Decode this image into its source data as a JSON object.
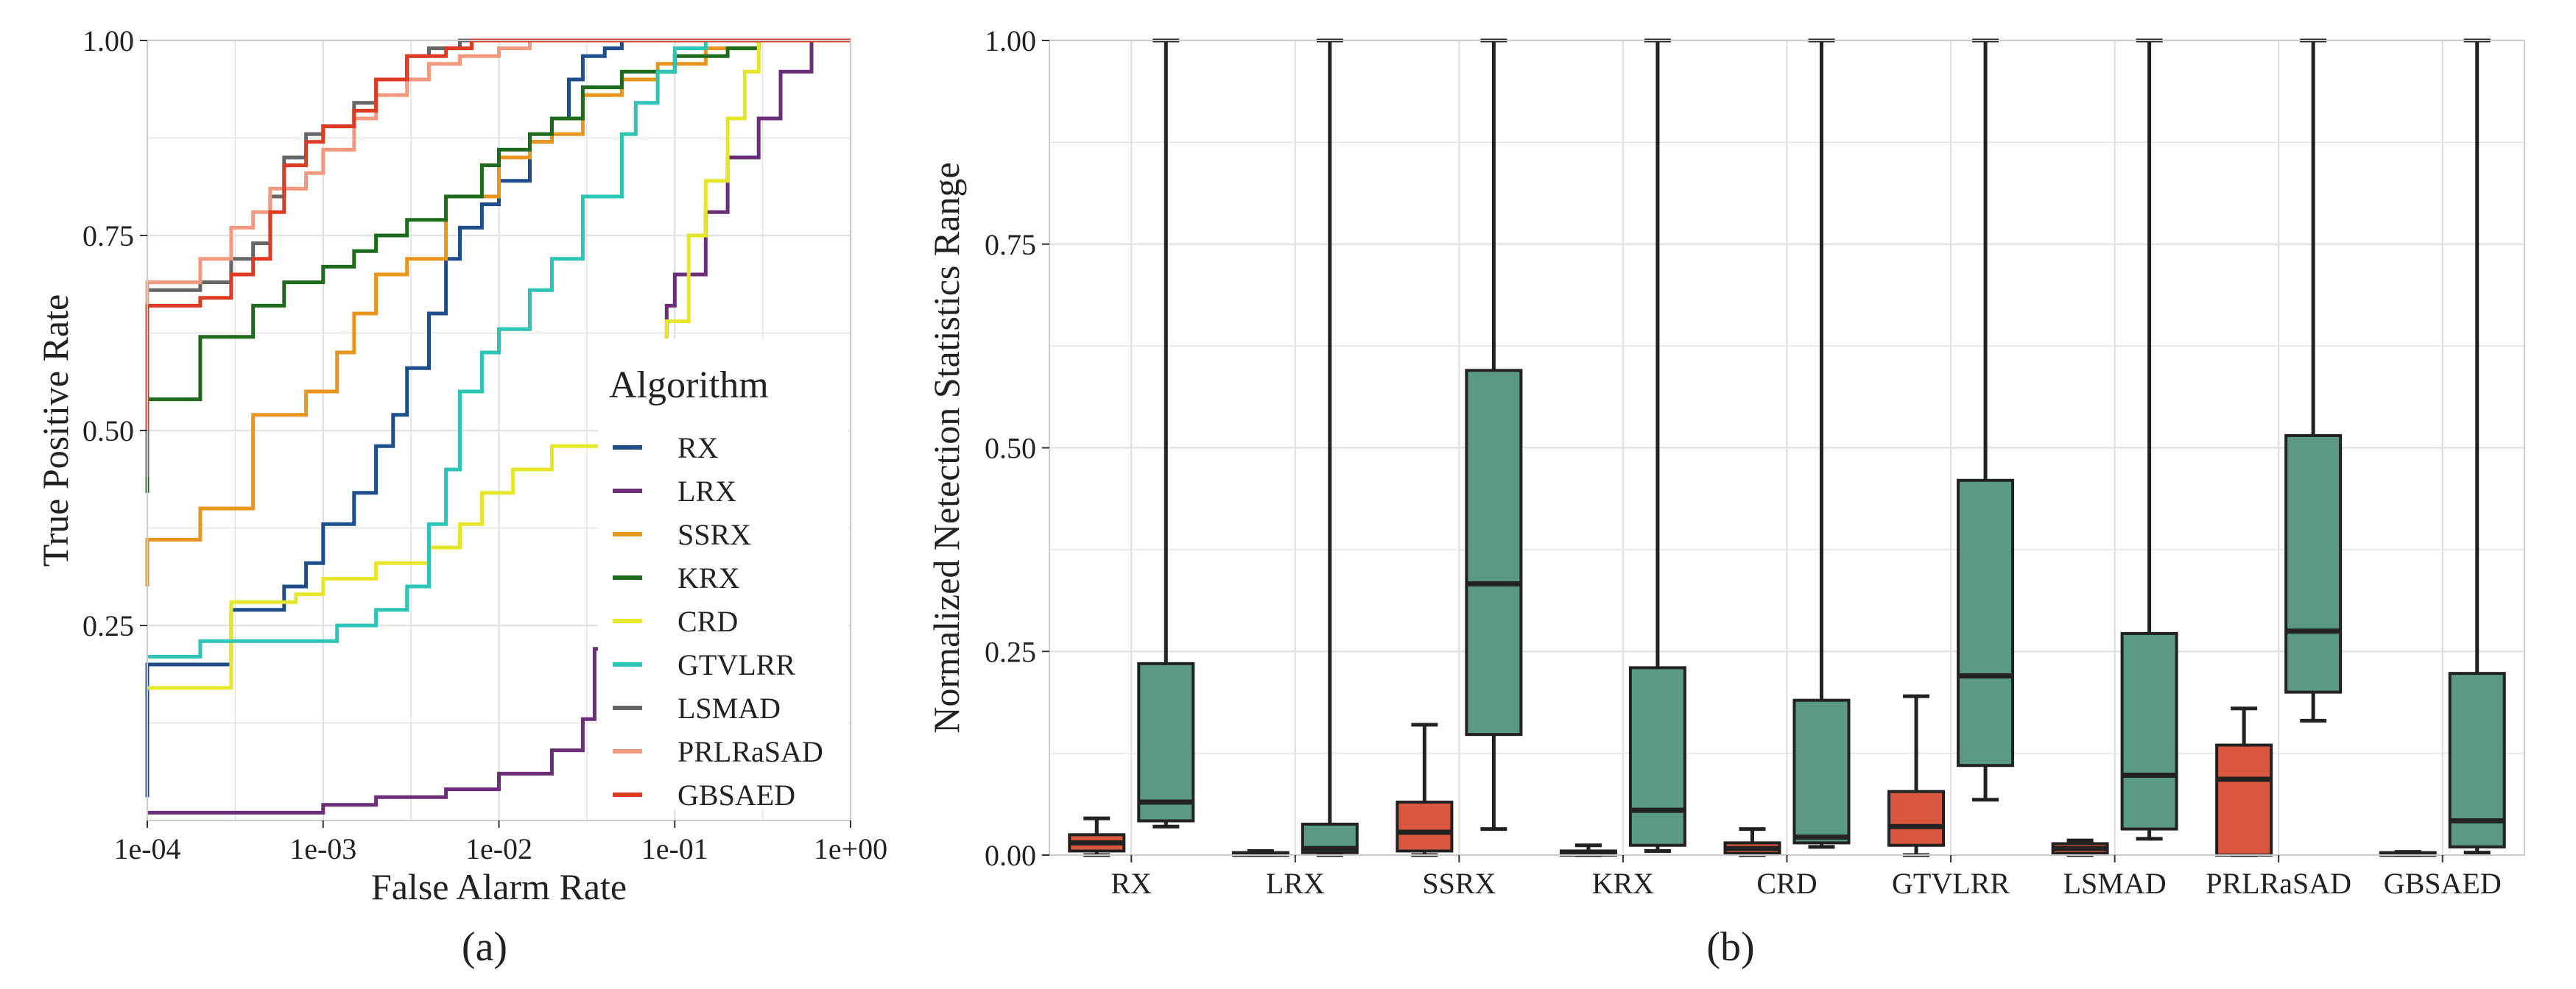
{
  "colors": {
    "RX": "#1f4e8c",
    "LRX": "#6b2f7a",
    "SSRX": "#e8961e",
    "KRX": "#1e6b1e",
    "CRD": "#e6e62a",
    "GTVLRR": "#2ec4b6",
    "LSMAD": "#666666",
    "PRLRaSAD": "#f29a80",
    "GBSAED": "#dd3b22",
    "background_box": "#d9573f",
    "target_box": "#5b9a82",
    "grid": "#e3e3e3"
  },
  "chart_data": [
    {
      "type": "line",
      "panel_label": "(a)",
      "title": "",
      "xlabel": "False Alarm Rate",
      "ylabel": "True Positive Rate",
      "xscale": "log",
      "xlim": [
        0.0001,
        1
      ],
      "ylim": [
        0,
        1
      ],
      "xticks": [
        "1e-04",
        "1e-03",
        "1e-02",
        "1e-01",
        "1e+00"
      ],
      "yticks": [
        "0.25",
        "0.50",
        "0.75",
        "1.00"
      ],
      "legend_title": "Algorithm",
      "legend_position": "bottom-right",
      "series": [
        {
          "name": "RX",
          "x": [
            0.0001,
            0.0001,
            0.0003,
            0.0003,
            0.0006,
            0.0008,
            0.001,
            0.0015,
            0.002,
            0.0025,
            0.003,
            0.004,
            0.005,
            0.006,
            0.008,
            0.01,
            0.015,
            0.02,
            0.025,
            0.03,
            0.04,
            0.05,
            1
          ],
          "y": [
            0.03,
            0.2,
            0.2,
            0.27,
            0.3,
            0.33,
            0.38,
            0.42,
            0.48,
            0.52,
            0.58,
            0.65,
            0.72,
            0.76,
            0.79,
            0.82,
            0.87,
            0.9,
            0.95,
            0.98,
            0.99,
            1,
            1
          ]
        },
        {
          "name": "LRX",
          "x": [
            0.0001,
            0.0005,
            0.001,
            0.002,
            0.005,
            0.01,
            0.02,
            0.03,
            0.035,
            0.08,
            0.09,
            0.1,
            0.15,
            0.2,
            0.3,
            0.4,
            0.6,
            1
          ],
          "y": [
            0.01,
            0.01,
            0.02,
            0.03,
            0.04,
            0.06,
            0.09,
            0.13,
            0.22,
            0.6,
            0.66,
            0.7,
            0.78,
            0.85,
            0.9,
            0.96,
            1,
            1
          ]
        },
        {
          "name": "SSRX",
          "x": [
            0.0001,
            0.0001,
            0.0002,
            0.0002,
            0.0004,
            0.0004,
            0.0008,
            0.0012,
            0.0015,
            0.002,
            0.003,
            0.005,
            0.01,
            0.015,
            0.02,
            0.03,
            0.05,
            0.08,
            0.15,
            0.3,
            1
          ],
          "y": [
            0.3,
            0.36,
            0.36,
            0.4,
            0.4,
            0.52,
            0.55,
            0.6,
            0.65,
            0.7,
            0.72,
            0.8,
            0.85,
            0.87,
            0.88,
            0.93,
            0.95,
            0.97,
            0.99,
            1,
            1
          ]
        },
        {
          "name": "KRX",
          "x": [
            0.0001,
            0.0001,
            0.0002,
            0.0002,
            0.0004,
            0.0006,
            0.001,
            0.0015,
            0.002,
            0.003,
            0.005,
            0.008,
            0.01,
            0.015,
            0.02,
            0.03,
            0.05,
            0.1,
            0.2,
            0.3,
            1
          ],
          "y": [
            0.42,
            0.54,
            0.56,
            0.62,
            0.66,
            0.69,
            0.71,
            0.73,
            0.75,
            0.77,
            0.8,
            0.84,
            0.86,
            0.88,
            0.9,
            0.94,
            0.96,
            0.98,
            0.99,
            1,
            1
          ]
        },
        {
          "name": "CRD",
          "x": [
            0.0001,
            0.0003,
            0.0003,
            0.0007,
            0.001,
            0.002,
            0.004,
            0.006,
            0.008,
            0.012,
            0.02,
            0.04,
            0.06,
            0.09,
            0.12,
            0.15,
            0.2,
            0.25,
            0.3,
            1
          ],
          "y": [
            0.17,
            0.18,
            0.28,
            0.29,
            0.31,
            0.33,
            0.35,
            0.38,
            0.42,
            0.45,
            0.48,
            0.55,
            0.58,
            0.64,
            0.75,
            0.82,
            0.9,
            0.96,
            1,
            1
          ]
        },
        {
          "name": "GTVLRR",
          "x": [
            0.0001,
            0.0002,
            0.0002,
            0.0009,
            0.0012,
            0.002,
            0.003,
            0.004,
            0.005,
            0.006,
            0.008,
            0.01,
            0.015,
            0.02,
            0.03,
            0.05,
            0.06,
            0.08,
            0.1,
            0.15,
            1
          ],
          "y": [
            0.21,
            0.21,
            0.23,
            0.23,
            0.25,
            0.27,
            0.3,
            0.38,
            0.45,
            0.55,
            0.6,
            0.63,
            0.68,
            0.72,
            0.8,
            0.88,
            0.92,
            0.96,
            0.99,
            1,
            1
          ]
        },
        {
          "name": "LSMAD",
          "x": [
            0.0001,
            0.0001,
            0.0002,
            0.0003,
            0.0004,
            0.0005,
            0.0006,
            0.0008,
            0.001,
            0.0015,
            0.002,
            0.003,
            0.004,
            0.006,
            0.008,
            1
          ],
          "y": [
            0.44,
            0.68,
            0.69,
            0.72,
            0.74,
            0.8,
            0.85,
            0.88,
            0.89,
            0.92,
            0.95,
            0.98,
            0.99,
            1,
            1,
            1
          ]
        },
        {
          "name": "PRLRaSAD",
          "x": [
            0.0001,
            0.0001,
            0.0002,
            0.0003,
            0.0004,
            0.0005,
            0.0008,
            0.001,
            0.0015,
            0.002,
            0.003,
            0.004,
            0.006,
            0.01,
            0.015,
            1
          ],
          "y": [
            0.6,
            0.69,
            0.72,
            0.76,
            0.78,
            0.81,
            0.83,
            0.86,
            0.9,
            0.93,
            0.95,
            0.97,
            0.98,
            0.99,
            1,
            1
          ]
        },
        {
          "name": "GBSAED",
          "x": [
            0.0001,
            0.0001,
            0.0002,
            0.0003,
            0.0004,
            0.0005,
            0.0006,
            0.0008,
            0.001,
            0.0015,
            0.002,
            0.003,
            0.005,
            0.007,
            0.01,
            1
          ],
          "y": [
            0.5,
            0.66,
            0.67,
            0.7,
            0.72,
            0.78,
            0.84,
            0.87,
            0.89,
            0.91,
            0.95,
            0.98,
            0.99,
            1,
            1,
            1
          ]
        }
      ]
    },
    {
      "type": "box",
      "panel_label": "(b)",
      "title": "",
      "xlabel": "",
      "ylabel": "Normalized Netection Statistics Range",
      "ylim": [
        0,
        1
      ],
      "yticks": [
        "0.00",
        "0.25",
        "0.50",
        "0.75",
        "1.00"
      ],
      "categories": [
        "RX",
        "LRX",
        "SSRX",
        "KRX",
        "CRD",
        "GTVLRR",
        "LSMAD",
        "PRLRaSAD",
        "GBSAED"
      ],
      "groups": [
        "background",
        "target"
      ],
      "boxes": [
        {
          "category": "RX",
          "background": [
            0.0,
            0.005,
            0.015,
            0.025,
            0.045
          ],
          "target": [
            0.035,
            0.042,
            0.065,
            0.235,
            1.0
          ]
        },
        {
          "category": "LRX",
          "background": [
            0.0,
            0.0,
            0.001,
            0.003,
            0.005
          ],
          "target": [
            0.0,
            0.003,
            0.008,
            0.038,
            1.0
          ]
        },
        {
          "category": "SSRX",
          "background": [
            0.0,
            0.005,
            0.028,
            0.065,
            0.16
          ],
          "target": [
            0.032,
            0.148,
            0.333,
            0.595,
            1.0
          ]
        },
        {
          "category": "KRX",
          "background": [
            0.0,
            0.0,
            0.002,
            0.005,
            0.012
          ],
          "target": [
            0.005,
            0.012,
            0.055,
            0.23,
            1.0
          ]
        },
        {
          "category": "CRD",
          "background": [
            0.0,
            0.002,
            0.008,
            0.015,
            0.032
          ],
          "target": [
            0.01,
            0.015,
            0.022,
            0.19,
            1.0
          ]
        },
        {
          "category": "GTVLRR",
          "background": [
            0.0,
            0.012,
            0.035,
            0.078,
            0.195
          ],
          "target": [
            0.068,
            0.11,
            0.22,
            0.46,
            1.0
          ]
        },
        {
          "category": "LSMAD",
          "background": [
            0.0,
            0.002,
            0.008,
            0.014,
            0.018
          ],
          "target": [
            0.02,
            0.032,
            0.098,
            0.272,
            1.0
          ]
        },
        {
          "category": "PRLRaSAD",
          "background": [
            0.0,
            0.0,
            0.093,
            0.135,
            0.18
          ],
          "target": [
            0.165,
            0.2,
            0.275,
            0.515,
            1.0
          ]
        },
        {
          "category": "GBSAED",
          "background": [
            0.0,
            0.0,
            0.001,
            0.003,
            0.004
          ],
          "target": [
            0.003,
            0.01,
            0.042,
            0.223,
            1.0
          ]
        }
      ]
    }
  ]
}
